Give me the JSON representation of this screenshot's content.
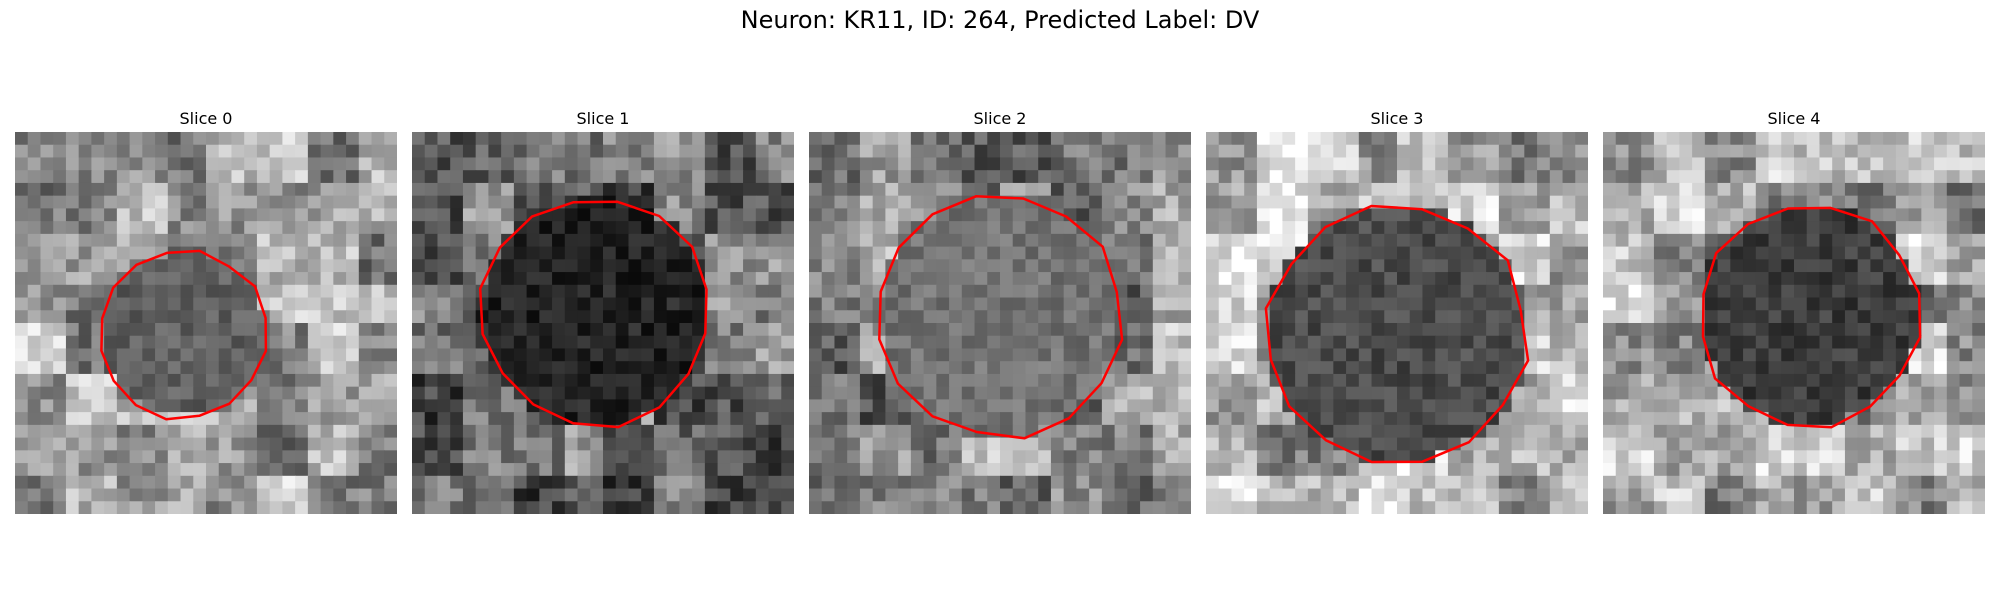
{
  "figure": {
    "title": "Neuron: KR11, ID: 264, Predicted Label: DV",
    "contour_color": "#ff0000"
  },
  "panels": [
    {
      "title": "Slice 0",
      "center": [
        0.44,
        0.53
      ],
      "radius": 0.22,
      "interior_gray": 95,
      "bg_gray": 160,
      "seed": 11
    },
    {
      "title": "Slice 1",
      "center": [
        0.48,
        0.47
      ],
      "radius": 0.3,
      "interior_gray": 35,
      "bg_gray": 110,
      "seed": 23
    },
    {
      "title": "Slice 2",
      "center": [
        0.5,
        0.48
      ],
      "radius": 0.32,
      "interior_gray": 115,
      "bg_gray": 140,
      "seed": 37
    },
    {
      "title": "Slice 3",
      "center": [
        0.5,
        0.53
      ],
      "radius": 0.34,
      "interior_gray": 75,
      "bg_gray": 175,
      "seed": 41
    },
    {
      "title": "Slice 4",
      "center": [
        0.54,
        0.48
      ],
      "radius": 0.29,
      "interior_gray": 60,
      "bg_gray": 170,
      "seed": 59
    }
  ]
}
